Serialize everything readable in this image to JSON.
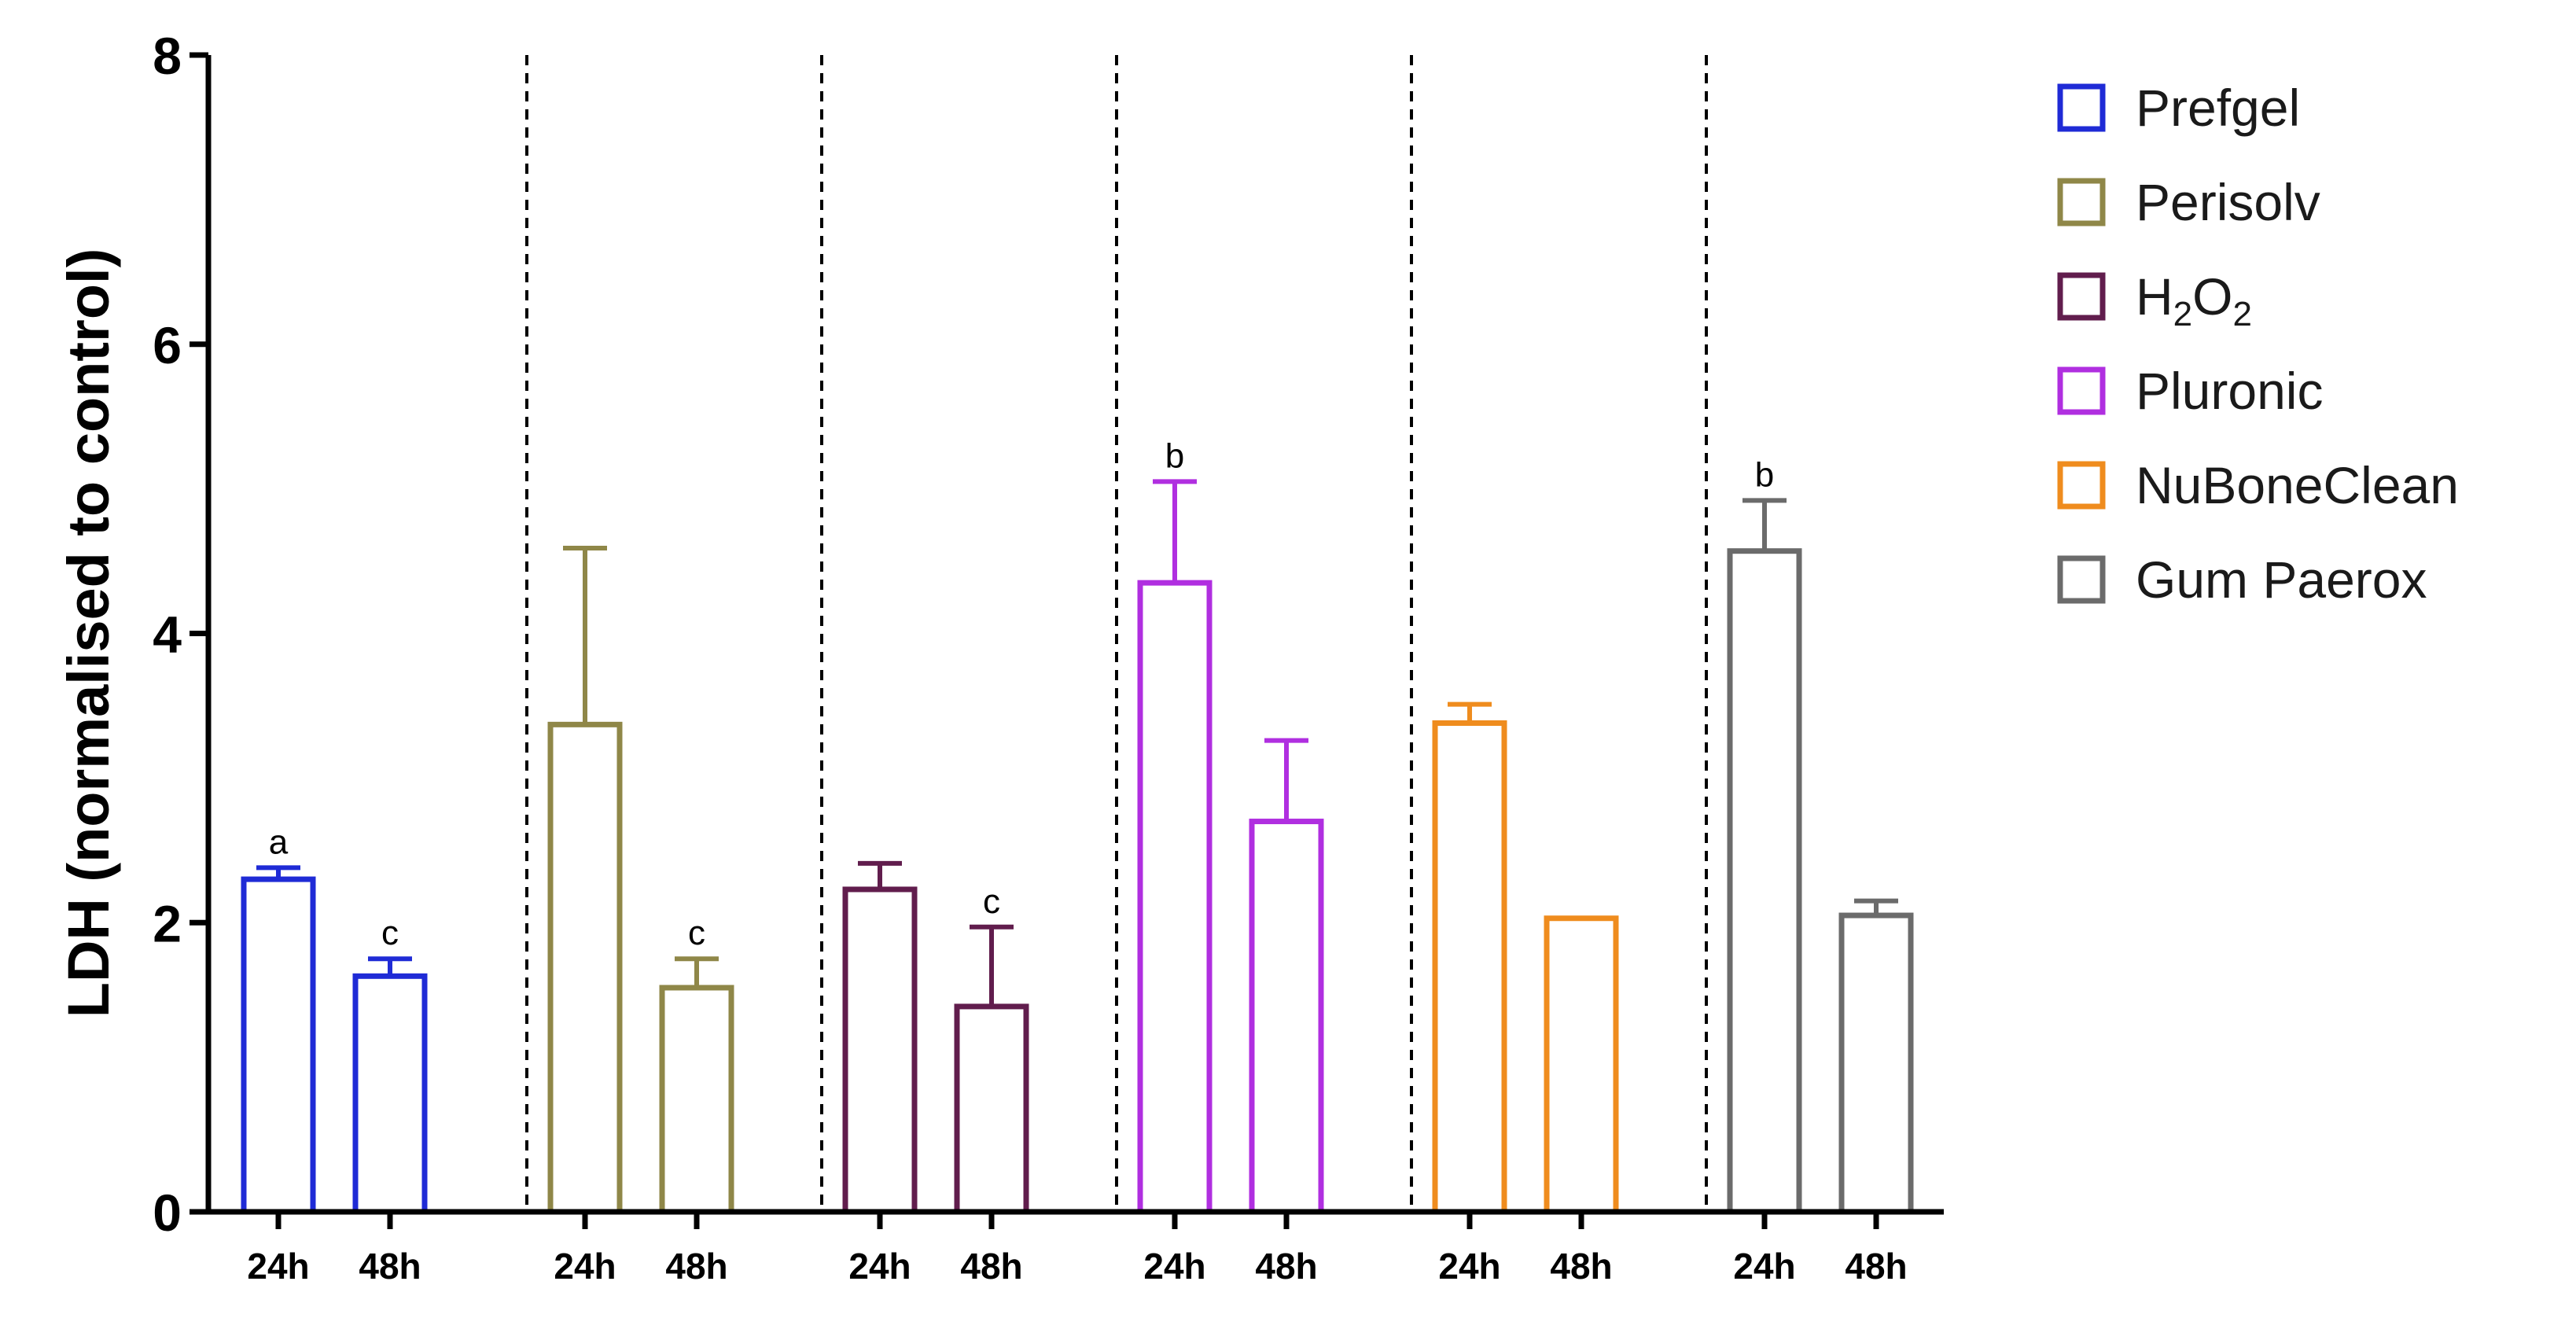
{
  "chart_data": {
    "type": "bar",
    "ylabel": "LDH (normalised to control)",
    "xlabel": "",
    "ylim": [
      0,
      8
    ],
    "yticks": [
      0,
      2,
      4,
      6,
      8
    ],
    "categories": [
      "24h",
      "48h"
    ],
    "legend_position": "right",
    "series": [
      {
        "name": "Prefgel",
        "color": "#1f2bd6",
        "values": [
          2.3,
          1.63
        ],
        "errors": [
          0.08,
          0.12
        ],
        "annotations": [
          "a",
          "c"
        ]
      },
      {
        "name": "Perisolv",
        "color": "#8f8748",
        "values": [
          3.37,
          1.55
        ],
        "errors": [
          1.22,
          0.2
        ],
        "annotations": [
          "",
          "c"
        ]
      },
      {
        "name": "H2O2",
        "color": "#611d4d",
        "values": [
          2.23,
          1.42
        ],
        "errors": [
          0.18,
          0.55
        ],
        "annotations": [
          "",
          "c"
        ]
      },
      {
        "name": "Pluronic",
        "color": "#b02fe0",
        "values": [
          4.35,
          2.7
        ],
        "errors": [
          0.7,
          0.56
        ],
        "annotations": [
          "b",
          ""
        ]
      },
      {
        "name": "NuBoneClean",
        "color": "#ef8c1e",
        "values": [
          3.38,
          2.03
        ],
        "errors": [
          0.13,
          0.0
        ],
        "annotations": [
          "",
          ""
        ]
      },
      {
        "name": "Gum Paerox",
        "color": "#6b6b6b",
        "values": [
          4.57,
          2.05
        ],
        "errors": [
          0.35,
          0.1
        ],
        "annotations": [
          "b",
          ""
        ]
      }
    ]
  }
}
